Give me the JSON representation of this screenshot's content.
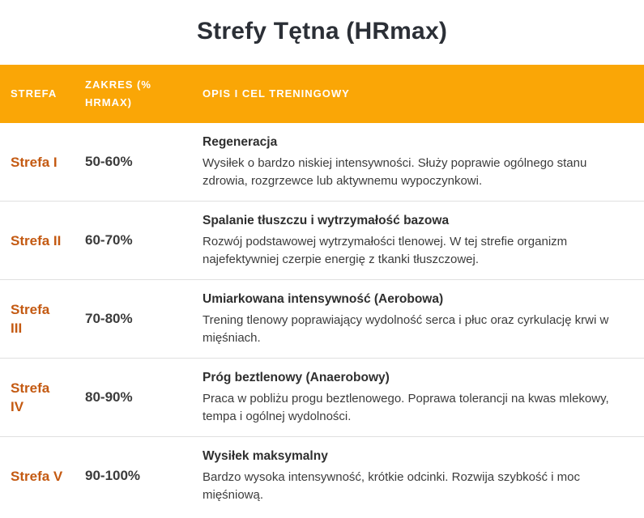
{
  "page": {
    "title": "Strefy Tętna (HRmax)"
  },
  "table": {
    "columns": [
      {
        "label": "STREFA"
      },
      {
        "label": "ZAKRES (% HRMAX)"
      },
      {
        "label": "OPIS I CEL TRENINGOWY"
      }
    ],
    "rows": [
      {
        "zone": "Strefa I",
        "range": "50-60%",
        "heading": "Regeneracja",
        "description": "Wysiłek o bardzo niskiej intensywności. Służy poprawie ogólnego stanu zdrowia, rozgrzewce lub aktywnemu wypoczynkowi."
      },
      {
        "zone": "Strefa II",
        "range": "60-70%",
        "heading": "Spalanie tłuszczu i wytrzymałość bazowa",
        "description": "Rozwój podstawowej wytrzymałości tlenowej. W tej strefie organizm najefektywniej czerpie energię z tkanki tłuszczowej."
      },
      {
        "zone": "Strefa III",
        "range": "70-80%",
        "heading": "Umiarkowana intensywność (Aerobowa)",
        "description": "Trening tlenowy poprawiający wydolność serca i płuc oraz cyrkulację krwi w mięśniach."
      },
      {
        "zone": "Strefa IV",
        "range": "80-90%",
        "heading": "Próg beztlenowy (Anaerobowy)",
        "description": "Praca w pobliżu progu beztlenowego. Poprawa tolerancji na kwas mlekowy, tempa i ogólnej wydolności."
      },
      {
        "zone": "Strefa V",
        "range": "90-100%",
        "heading": "Wysiłek maksymalny",
        "description": "Bardzo wysoka intensywność, krótkie odcinki. Rozwija szybkość i moc mięśniową."
      }
    ]
  },
  "colors": {
    "header_bg": "#faa606",
    "header_text": "#ffffff",
    "zone_label": "#c45a12",
    "title_text": "#2b2f36",
    "heading_text": "#2f2f2f",
    "body_text": "#3c3c3c",
    "range_text": "#3b3b3b",
    "divider": "#e0e0e0",
    "page_bg": "#ffffff"
  }
}
